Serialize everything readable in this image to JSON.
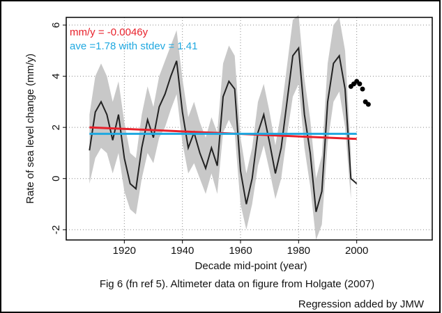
{
  "chart_data": {
    "type": "line",
    "xlabel": "Decade mid-point (year)",
    "ylabel": "Rate of sea level change (mm/y)",
    "caption": "Fig 6 (fn ref 5). Altimeter data on figure from Holgate (2007)",
    "note": "Regression added by JMW",
    "annotations": [
      {
        "text": "mm/y = -0.0046y",
        "color": "#e8212b"
      },
      {
        "text": "ave =1.78 with stdev = 1.41",
        "color": "#1fa8e0"
      }
    ],
    "xlim": [
      1900,
      2026
    ],
    "xticks": [
      1920,
      1940,
      1960,
      1980,
      2000
    ],
    "ylim": [
      -2.4,
      6.3
    ],
    "yticks": [
      -2,
      0,
      2,
      4,
      6
    ],
    "grid": true,
    "bands": [
      {
        "color": "#c8c8c8",
        "x": [
          1908,
          1910,
          1912,
          1914,
          1916,
          1918,
          1920,
          1922,
          1924,
          1926,
          1928,
          1930,
          1932,
          1934,
          1936,
          1938,
          1940,
          1942,
          1944,
          1946,
          1948,
          1950,
          1952,
          1954,
          1956,
          1958,
          1960,
          1962,
          1964,
          1966,
          1968,
          1970,
          1972,
          1974,
          1976,
          1978,
          1980,
          1982,
          1984,
          1986,
          1988,
          1990,
          1992,
          1994,
          1996,
          1998
        ],
        "lower": [
          -0.2,
          0.8,
          1.2,
          1.0,
          0.2,
          1.0,
          -0.5,
          -1.2,
          -1.4,
          0.0,
          1.0,
          0.6,
          1.6,
          2.0,
          2.7,
          3.3,
          1.4,
          0.2,
          0.6,
          0.0,
          -0.6,
          0.2,
          -0.6,
          1.8,
          2.3,
          1.8,
          -1.0,
          -2.0,
          -1.0,
          0.5,
          1.3,
          0.3,
          -0.8,
          0.0,
          1.7,
          3.2,
          3.7,
          1.2,
          -0.3,
          -2.4,
          -1.8,
          1.4,
          3.0,
          3.4,
          2.0,
          -0.8
        ],
        "upper": [
          2.5,
          4.0,
          4.5,
          4.0,
          3.0,
          3.8,
          2.2,
          1.0,
          0.8,
          2.5,
          3.6,
          2.8,
          4.0,
          4.6,
          5.2,
          5.8,
          3.9,
          2.4,
          3.0,
          2.2,
          1.6,
          2.4,
          1.8,
          4.5,
          5.2,
          4.8,
          1.6,
          0.2,
          1.2,
          3.0,
          3.7,
          2.6,
          1.3,
          2.6,
          4.4,
          6.2,
          6.4,
          3.9,
          2.3,
          0.0,
          0.9,
          4.5,
          6.0,
          6.3,
          5.0,
          1.0
        ]
      }
    ],
    "series": [
      {
        "color": "#222222",
        "style": "line",
        "x": [
          1908,
          1910,
          1912,
          1914,
          1916,
          1918,
          1920,
          1922,
          1924,
          1926,
          1928,
          1930,
          1932,
          1934,
          1936,
          1938,
          1940,
          1942,
          1944,
          1946,
          1948,
          1950,
          1952,
          1954,
          1956,
          1958,
          1960,
          1962,
          1964,
          1966,
          1968,
          1970,
          1972,
          1974,
          1976,
          1978,
          1980,
          1982,
          1984,
          1986,
          1988,
          1990,
          1992,
          1994,
          1996,
          1998,
          2000
        ],
        "values": [
          1.1,
          2.6,
          3.0,
          2.5,
          1.5,
          2.5,
          0.8,
          -0.2,
          -0.4,
          1.2,
          2.3,
          1.6,
          2.8,
          3.3,
          4.0,
          4.6,
          2.6,
          1.2,
          1.8,
          1.0,
          0.4,
          1.2,
          0.5,
          3.2,
          3.8,
          3.5,
          0.3,
          -1.0,
          0.0,
          1.8,
          2.5,
          1.4,
          0.2,
          1.2,
          3.0,
          4.8,
          5.1,
          2.5,
          1.0,
          -1.3,
          -0.5,
          3.0,
          4.5,
          4.8,
          3.5,
          0.0,
          -0.2
        ]
      },
      {
        "color": "#e8212b",
        "style": "line",
        "x": [
          1908,
          2000
        ],
        "values": [
          2.0,
          1.55
        ]
      },
      {
        "color": "#1fa8e0",
        "style": "line",
        "x": [
          1908,
          2000
        ],
        "values": [
          1.75,
          1.75
        ]
      },
      {
        "color": "#000000",
        "style": "dots",
        "x": [
          1998,
          1999,
          2000,
          2001,
          2002,
          2003,
          2004
        ],
        "values": [
          3.6,
          3.7,
          3.8,
          3.7,
          3.5,
          3.0,
          2.9
        ]
      }
    ]
  }
}
